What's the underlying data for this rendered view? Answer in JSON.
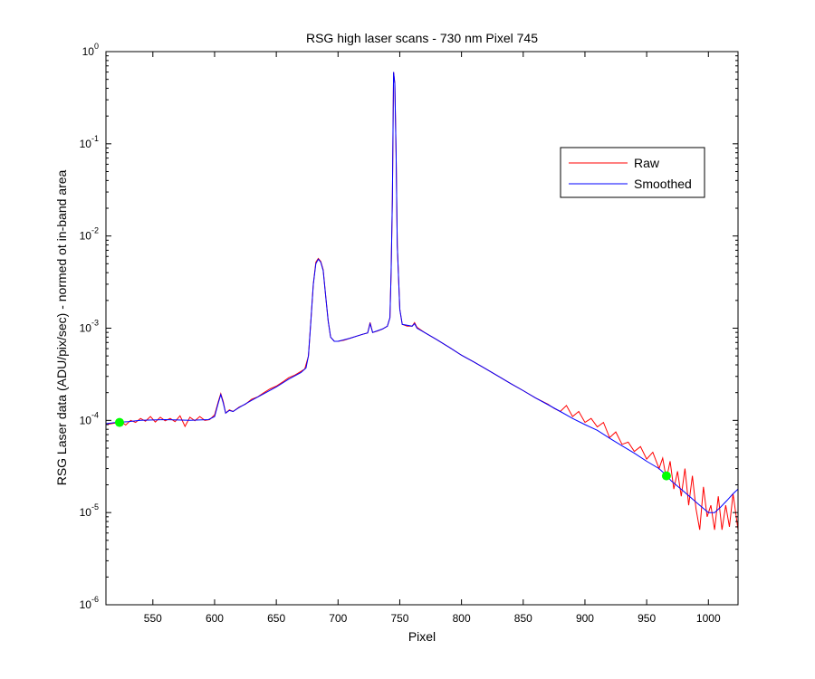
{
  "chart_data": {
    "type": "line",
    "title": "RSG high laser scans  - 730 nm    Pixel 745",
    "xlabel": "Pixel",
    "ylabel": "RSG Laser data (ADU/pix/sec) - normed ot in-band area",
    "xlim": [
      512,
      1024
    ],
    "ylim": [
      1e-06,
      1
    ],
    "yscale": "log",
    "xticks": [
      550,
      600,
      650,
      700,
      750,
      800,
      850,
      900,
      950,
      1000
    ],
    "yticks": [
      {
        "value": 1e-06,
        "base": "10",
        "exp": "-6"
      },
      {
        "value": 1e-05,
        "base": "10",
        "exp": "-5"
      },
      {
        "value": 0.0001,
        "base": "10",
        "exp": "-4"
      },
      {
        "value": 0.001,
        "base": "10",
        "exp": "-3"
      },
      {
        "value": 0.01,
        "base": "10",
        "exp": "-2"
      },
      {
        "value": 0.1,
        "base": "10",
        "exp": "-1"
      },
      {
        "value": 1,
        "base": "10",
        "exp": "0"
      }
    ],
    "legend_position": "top-right",
    "series": [
      {
        "name": "Raw",
        "color": "#ff0000",
        "points": [
          [
            512,
            9e-05
          ],
          [
            520,
            9.4e-05
          ],
          [
            524,
            9.8e-05
          ],
          [
            528,
            8.9e-05
          ],
          [
            532,
            0.0001
          ],
          [
            536,
            9.5e-05
          ],
          [
            540,
            0.000105
          ],
          [
            544,
            9.8e-05
          ],
          [
            548,
            0.00011
          ],
          [
            552,
            9.6e-05
          ],
          [
            556,
            0.000108
          ],
          [
            560,
            9.9e-05
          ],
          [
            564,
            0.000105
          ],
          [
            568,
            9.7e-05
          ],
          [
            572,
            0.000112
          ],
          [
            576,
            8.6e-05
          ],
          [
            580,
            0.000108
          ],
          [
            584,
            9.9e-05
          ],
          [
            588,
            0.00011
          ],
          [
            592,
            0.0001
          ],
          [
            596,
            0.000102
          ],
          [
            600,
            0.000115
          ],
          [
            603,
            0.00016
          ],
          [
            605,
            0.000195
          ],
          [
            607,
            0.00016
          ],
          [
            609,
            0.00012
          ],
          [
            612,
            0.00013
          ],
          [
            615,
            0.000125
          ],
          [
            620,
            0.00014
          ],
          [
            625,
            0.00015
          ],
          [
            630,
            0.00017
          ],
          [
            635,
            0.00018
          ],
          [
            640,
            0.0002
          ],
          [
            645,
            0.00022
          ],
          [
            650,
            0.000235
          ],
          [
            655,
            0.00026
          ],
          [
            660,
            0.00029
          ],
          [
            665,
            0.00031
          ],
          [
            670,
            0.00034
          ],
          [
            673,
            0.00036
          ],
          [
            676,
            0.0005
          ],
          [
            678,
            0.0012
          ],
          [
            680,
            0.003
          ],
          [
            682,
            0.0052
          ],
          [
            684,
            0.0057
          ],
          [
            686,
            0.0053
          ],
          [
            688,
            0.0043
          ],
          [
            690,
            0.0022
          ],
          [
            692,
            0.0012
          ],
          [
            694,
            0.0008
          ],
          [
            697,
            0.00072
          ],
          [
            700,
            0.00072
          ],
          [
            705,
            0.00074
          ],
          [
            710,
            0.00078
          ],
          [
            715,
            0.00082
          ],
          [
            720,
            0.00086
          ],
          [
            724,
            0.00089
          ],
          [
            726,
            0.00115
          ],
          [
            728,
            0.0009
          ],
          [
            732,
            0.00093
          ],
          [
            736,
            0.00098
          ],
          [
            740,
            0.00105
          ],
          [
            742,
            0.0013
          ],
          [
            743,
            0.004
          ],
          [
            744,
            0.025
          ],
          [
            745,
            0.6
          ],
          [
            746,
            0.45
          ],
          [
            747,
            0.08
          ],
          [
            748,
            0.008
          ],
          [
            750,
            0.0016
          ],
          [
            752,
            0.0011
          ],
          [
            756,
            0.00105
          ],
          [
            760,
            0.00105
          ],
          [
            762,
            0.00115
          ],
          [
            764,
            0.00102
          ],
          [
            770,
            0.0009
          ],
          [
            780,
            0.00075
          ],
          [
            790,
            0.00062
          ],
          [
            800,
            0.00051
          ],
          [
            810,
            0.00043
          ],
          [
            820,
            0.00036
          ],
          [
            830,
            0.0003
          ],
          [
            840,
            0.00025
          ],
          [
            850,
            0.00021
          ],
          [
            860,
            0.000175
          ],
          [
            870,
            0.00015
          ],
          [
            875,
            0.000135
          ],
          [
            880,
            0.000125
          ],
          [
            885,
            0.000145
          ],
          [
            890,
            0.00011
          ],
          [
            895,
            0.000125
          ],
          [
            900,
            9.5e-05
          ],
          [
            905,
            0.000105
          ],
          [
            910,
            8.5e-05
          ],
          [
            915,
            9.5e-05
          ],
          [
            920,
            6.5e-05
          ],
          [
            925,
            7.5e-05
          ],
          [
            930,
            5.5e-05
          ],
          [
            935,
            5.8e-05
          ],
          [
            940,
            4.6e-05
          ],
          [
            945,
            5.2e-05
          ],
          [
            950,
            3.8e-05
          ],
          [
            955,
            4.5e-05
          ],
          [
            960,
            3e-05
          ],
          [
            963,
            3.9e-05
          ],
          [
            966,
            2.3e-05
          ],
          [
            969,
            3.6e-05
          ],
          [
            972,
            1.8e-05
          ],
          [
            975,
            2.8e-05
          ],
          [
            978,
            1.5e-05
          ],
          [
            981,
            3e-05
          ],
          [
            984,
            1.2e-05
          ],
          [
            987,
            2.5e-05
          ],
          [
            990,
            1.1e-05
          ],
          [
            993,
            6.5e-06
          ],
          [
            996,
            1.9e-05
          ],
          [
            999,
            9e-06
          ],
          [
            1002,
            1.2e-05
          ],
          [
            1005,
            6.5e-06
          ],
          [
            1008,
            1.5e-05
          ],
          [
            1011,
            6.5e-06
          ],
          [
            1014,
            1.2e-05
          ],
          [
            1017,
            7e-06
          ],
          [
            1020,
            1.6e-05
          ],
          [
            1024,
            6.5e-06
          ]
        ]
      },
      {
        "name": "Smoothed",
        "color": "#0000ff",
        "points": [
          [
            512,
            9.2e-05
          ],
          [
            520,
            9.5e-05
          ],
          [
            530,
            9.7e-05
          ],
          [
            540,
            0.0001
          ],
          [
            560,
            0.000102
          ],
          [
            580,
            0.0001
          ],
          [
            595,
            0.000102
          ],
          [
            600,
            0.00011
          ],
          [
            603,
            0.000155
          ],
          [
            605,
            0.00019
          ],
          [
            607,
            0.000155
          ],
          [
            609,
            0.00012
          ],
          [
            612,
            0.000128
          ],
          [
            615,
            0.000125
          ],
          [
            620,
            0.000138
          ],
          [
            630,
            0.000165
          ],
          [
            640,
            0.000195
          ],
          [
            650,
            0.00023
          ],
          [
            660,
            0.00028
          ],
          [
            670,
            0.00033
          ],
          [
            674,
            0.00037
          ],
          [
            676,
            0.0005
          ],
          [
            678,
            0.0012
          ],
          [
            680,
            0.003
          ],
          [
            682,
            0.005
          ],
          [
            684,
            0.0056
          ],
          [
            686,
            0.0052
          ],
          [
            688,
            0.0042
          ],
          [
            690,
            0.0022
          ],
          [
            692,
            0.0012
          ],
          [
            694,
            0.0008
          ],
          [
            697,
            0.00072
          ],
          [
            700,
            0.00072
          ],
          [
            710,
            0.00078
          ],
          [
            720,
            0.00086
          ],
          [
            724,
            0.00089
          ],
          [
            726,
            0.00112
          ],
          [
            728,
            0.0009
          ],
          [
            736,
            0.00098
          ],
          [
            740,
            0.00105
          ],
          [
            742,
            0.0013
          ],
          [
            743,
            0.004
          ],
          [
            744,
            0.025
          ],
          [
            745,
            0.6
          ],
          [
            746,
            0.45
          ],
          [
            747,
            0.08
          ],
          [
            748,
            0.008
          ],
          [
            750,
            0.0016
          ],
          [
            752,
            0.0011
          ],
          [
            760,
            0.00105
          ],
          [
            762,
            0.00112
          ],
          [
            764,
            0.001
          ],
          [
            770,
            0.0009
          ],
          [
            780,
            0.00075
          ],
          [
            790,
            0.00062
          ],
          [
            800,
            0.00051
          ],
          [
            810,
            0.00043
          ],
          [
            820,
            0.00036
          ],
          [
            830,
            0.0003
          ],
          [
            840,
            0.00025
          ],
          [
            850,
            0.00021
          ],
          [
            860,
            0.000175
          ],
          [
            870,
            0.000148
          ],
          [
            880,
            0.000125
          ],
          [
            890,
            0.000105
          ],
          [
            900,
            9e-05
          ],
          [
            910,
            7.8e-05
          ],
          [
            920,
            6.4e-05
          ],
          [
            930,
            5.3e-05
          ],
          [
            940,
            4.4e-05
          ],
          [
            950,
            3.6e-05
          ],
          [
            960,
            3e-05
          ],
          [
            965,
            2.6e-05
          ],
          [
            970,
            2.2e-05
          ],
          [
            980,
            1.7e-05
          ],
          [
            990,
            1.3e-05
          ],
          [
            1000,
            1e-05
          ],
          [
            1005,
            1e-05
          ],
          [
            1010,
            1.15e-05
          ],
          [
            1015,
            1.35e-05
          ],
          [
            1020,
            1.6e-05
          ],
          [
            1024,
            1.8e-05
          ]
        ]
      }
    ],
    "markers": [
      {
        "x": 523,
        "y": 9.5e-05,
        "color": "#00ff00"
      },
      {
        "x": 966,
        "y": 2.5e-05,
        "color": "#00ff00"
      }
    ]
  }
}
